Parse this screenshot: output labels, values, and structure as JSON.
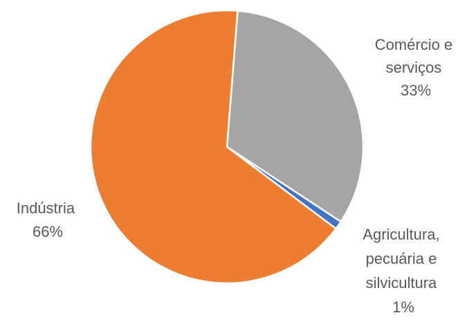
{
  "chart_data": {
    "type": "pie",
    "slices": [
      {
        "label_lines": [
          "Comércio e",
          "serviços"
        ],
        "value": 33,
        "value_label": "33%",
        "color": "#a5a5a5"
      },
      {
        "label_lines": [
          "Agricultura,",
          "pecuária e",
          "silvicultura"
        ],
        "value": 1,
        "value_label": "1%",
        "color": "#4472c4"
      },
      {
        "label_lines": [
          "Indústria"
        ],
        "value": 66,
        "value_label": "66%",
        "color": "#ed7d31"
      }
    ],
    "start_angle_deg": 4.5,
    "direction": "clockwise",
    "legend": "none",
    "data_labels": "outside"
  }
}
